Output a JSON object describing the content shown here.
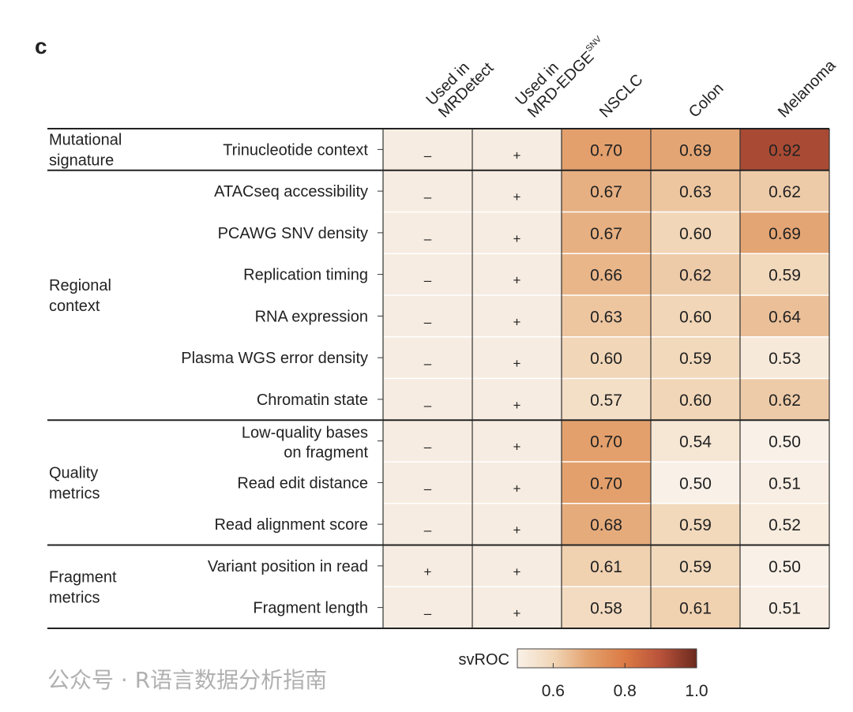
{
  "panel_label": "c",
  "chart_data": {
    "type": "heatmap",
    "columns": {
      "usage": [
        "Used in|MRDetect",
        "Used in|MRD-EDGE"
      ],
      "usage_superscript": [
        "",
        "SNV"
      ],
      "cancer": [
        "NSCLC",
        "Colon",
        "Melanoma"
      ]
    },
    "groups": [
      {
        "name": "Mutational|signature",
        "rows": [
          0
        ]
      },
      {
        "name": "Regional|context",
        "rows": [
          1,
          2,
          3,
          4,
          5,
          6
        ]
      },
      {
        "name": "Quality|metrics",
        "rows": [
          7,
          8,
          9
        ]
      },
      {
        "name": "Fragment|metrics",
        "rows": [
          10,
          11
        ]
      }
    ],
    "rows": [
      {
        "label": "Trinucleotide context",
        "mrdetect": "–",
        "edge": "+",
        "values": [
          0.7,
          0.69,
          0.92
        ]
      },
      {
        "label": "ATACseq accessibility",
        "mrdetect": "–",
        "edge": "+",
        "values": [
          0.67,
          0.63,
          0.62
        ]
      },
      {
        "label": "PCAWG SNV density",
        "mrdetect": "–",
        "edge": "+",
        "values": [
          0.67,
          0.6,
          0.69
        ]
      },
      {
        "label": "Replication timing",
        "mrdetect": "–",
        "edge": "+",
        "values": [
          0.66,
          0.62,
          0.59
        ]
      },
      {
        "label": "RNA expression",
        "mrdetect": "–",
        "edge": "+",
        "values": [
          0.63,
          0.6,
          0.64
        ]
      },
      {
        "label": "Plasma WGS error density",
        "mrdetect": "–",
        "edge": "+",
        "values": [
          0.6,
          0.59,
          0.53
        ]
      },
      {
        "label": "Chromatin state",
        "mrdetect": "–",
        "edge": "+",
        "values": [
          0.57,
          0.6,
          0.62
        ]
      },
      {
        "label": "Low-quality bases|on fragment",
        "mrdetect": "–",
        "edge": "+",
        "values": [
          0.7,
          0.54,
          0.5
        ]
      },
      {
        "label": "Read edit distance",
        "mrdetect": "–",
        "edge": "+",
        "values": [
          0.7,
          0.5,
          0.51
        ]
      },
      {
        "label": "Read alignment score",
        "mrdetect": "–",
        "edge": "+",
        "values": [
          0.68,
          0.59,
          0.52
        ]
      },
      {
        "label": "Variant position in read",
        "mrdetect": "+",
        "edge": "+",
        "values": [
          0.61,
          0.59,
          0.5
        ]
      },
      {
        "label": "Fragment length",
        "mrdetect": "–",
        "edge": "+",
        "values": [
          0.58,
          0.61,
          0.51
        ]
      }
    ],
    "colorbar": {
      "label": "svROC",
      "range": [
        0.5,
        1.0
      ],
      "ticks": [
        0.6,
        0.8,
        1.0
      ],
      "tick_labels": [
        "0.6",
        "0.8",
        "1.0"
      ]
    },
    "colors": {
      "stops": [
        [
          0.5,
          "#f9f1e8"
        ],
        [
          0.6,
          "#f1d6b7"
        ],
        [
          0.7,
          "#e3a06c"
        ],
        [
          0.8,
          "#dc7a44"
        ],
        [
          0.9,
          "#b8523a"
        ],
        [
          1.0,
          "#6c2a1e"
        ]
      ],
      "usage_fill": "#f6ece1"
    }
  },
  "watermark": "公众号 · R语言数据分析指南"
}
